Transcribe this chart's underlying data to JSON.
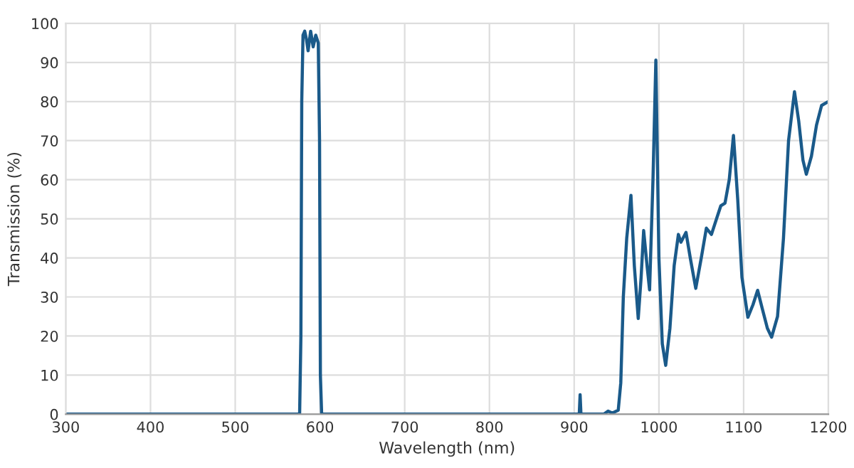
{
  "chart_data": {
    "type": "line",
    "xlabel": "Wavelength (nm)",
    "ylabel": "Transmission (%)",
    "xlim": [
      300,
      1200
    ],
    "ylim": [
      0,
      100
    ],
    "xticks": [
      300,
      400,
      500,
      600,
      700,
      800,
      900,
      1000,
      1100,
      1200
    ],
    "yticks": [
      0,
      10,
      20,
      30,
      40,
      50,
      60,
      70,
      80,
      90,
      100
    ],
    "grid": true,
    "marker": "none",
    "line_style": "solid",
    "series": [
      {
        "color": "#1a5a8a",
        "x": [
          300,
          576,
          577.5,
          578.5,
          580,
          582,
          584,
          586,
          589,
          592,
          595,
          598,
          599.5,
          600.5,
          602,
          905,
          906,
          907,
          908,
          909,
          935,
          940,
          945,
          952,
          955,
          958,
          962,
          967,
          971,
          975.6,
          979,
          982,
          986,
          989,
          993,
          996.4,
          1000,
          1004,
          1008,
          1013,
          1018,
          1023,
          1026,
          1032,
          1037,
          1043.5,
          1050,
          1056,
          1062,
          1068,
          1073,
          1078,
          1083,
          1088,
          1093,
          1098,
          1105,
          1111,
          1116.5,
          1122,
          1128,
          1133,
          1140,
          1147,
          1153,
          1160,
          1165,
          1170,
          1174,
          1180,
          1186,
          1192,
          1200
        ],
        "values": [
          0,
          0,
          20,
          80,
          97,
          98,
          96,
          93,
          98,
          94,
          97,
          95,
          70,
          10,
          0,
          0,
          0,
          5,
          0,
          0,
          0,
          0.8,
          0.3,
          1,
          8,
          30,
          45,
          56,
          38,
          24.5,
          35,
          47,
          38,
          31.8,
          60,
          90.6,
          40,
          18,
          12.5,
          22,
          38,
          46,
          44,
          46.5,
          40,
          32.2,
          40,
          47.6,
          46,
          50,
          53.3,
          54,
          60,
          71.3,
          55,
          35,
          24.8,
          28,
          31.7,
          27,
          22,
          19.7,
          25,
          45,
          70,
          82.5,
          75,
          65,
          61.4,
          66,
          74,
          79,
          80
        ]
      }
    ]
  }
}
